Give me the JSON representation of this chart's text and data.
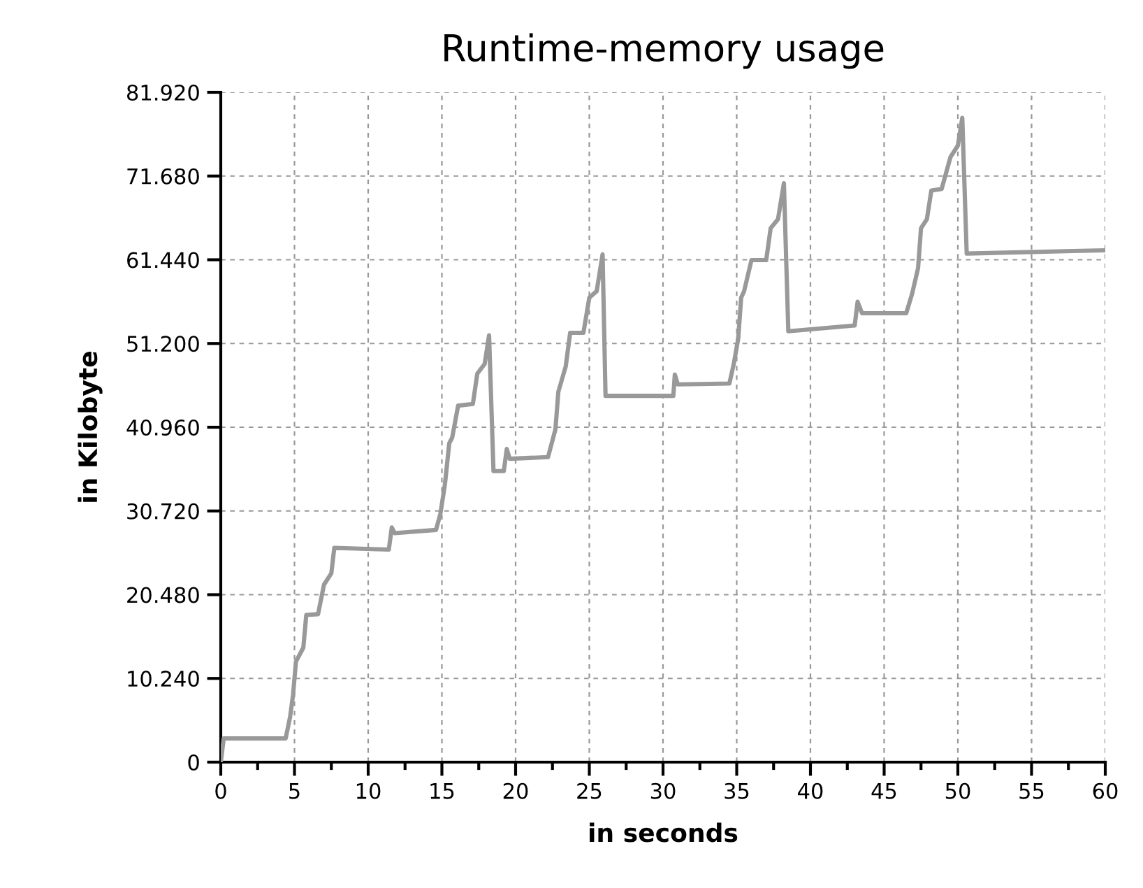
{
  "chart_data": {
    "type": "line",
    "title": "Runtime-memory usage",
    "xlabel": "in seconds",
    "ylabel": "in Kilobyte",
    "xlim": [
      0,
      60
    ],
    "xticks": [
      0,
      5,
      10,
      15,
      20,
      25,
      30,
      35,
      40,
      45,
      50,
      55,
      60
    ],
    "ylim": [
      0,
      81920
    ],
    "yticks": [
      0,
      {
        "value": 10240,
        "label": "10.240"
      },
      {
        "value": 20480,
        "label": "20.480"
      },
      {
        "value": 30720,
        "label": "30.720"
      },
      {
        "value": 40960,
        "label": "40.960"
      },
      {
        "value": 51200,
        "label": "51.200"
      },
      {
        "value": 61440,
        "label": "61.440"
      },
      {
        "value": 71680,
        "label": "71.680"
      },
      {
        "value": 81920,
        "label": "81.920"
      }
    ],
    "grid": true,
    "line_style": "solid",
    "marker": "none",
    "series": [
      {
        "color": "#999999",
        "x": [
          0,
          0.2,
          4.4,
          4.7,
          4.9,
          5.1,
          5.6,
          5.8,
          6.6,
          7.0,
          7.5,
          7.7,
          11.4,
          11.6,
          11.8,
          14.6,
          14.9,
          15.2,
          15.5,
          15.7,
          16.1,
          17.1,
          17.4,
          17.9,
          18.2,
          18.5,
          19.2,
          19.4,
          19.6,
          22.2,
          22.7,
          22.9,
          23.4,
          23.7,
          24.6,
          25.0,
          25.5,
          25.9,
          26.1,
          30.7,
          30.8,
          31.0,
          34.5,
          34.8,
          35.1,
          35.3,
          35.5,
          36.0,
          37.0,
          37.3,
          37.8,
          38.2,
          38.5,
          43.0,
          43.2,
          43.5,
          46.5,
          46.9,
          47.3,
          47.5,
          47.9,
          48.2,
          48.9,
          49.5,
          50.0,
          50.3,
          50.6,
          60
        ],
        "values": [
          0,
          2900,
          2900,
          5500,
          8200,
          12300,
          14000,
          18000,
          18100,
          21700,
          23100,
          26200,
          26000,
          28700,
          28000,
          28400,
          30400,
          33900,
          39000,
          39700,
          43600,
          43800,
          47500,
          48700,
          52200,
          35600,
          35600,
          38300,
          37100,
          37300,
          40700,
          45300,
          48400,
          52500,
          52500,
          56800,
          57600,
          62100,
          44800,
          44800,
          47400,
          46200,
          46300,
          48700,
          51800,
          56800,
          57600,
          61400,
          61400,
          65300,
          66400,
          70800,
          52700,
          53400,
          56300,
          54900,
          54900,
          57300,
          60400,
          65300,
          66400,
          69900,
          70100,
          74000,
          75400,
          78800,
          62200,
          62600
        ]
      }
    ]
  }
}
